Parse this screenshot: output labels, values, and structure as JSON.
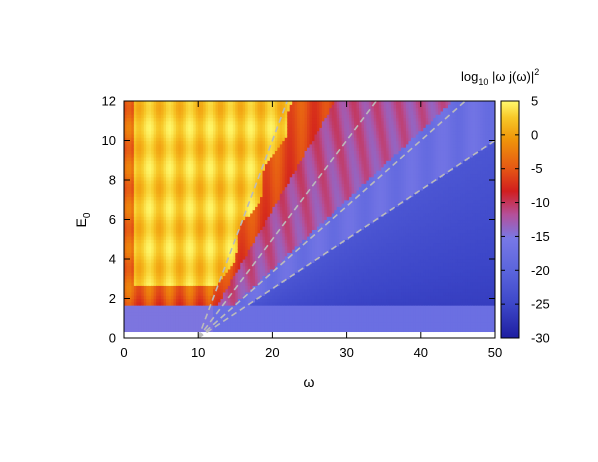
{
  "chart_data": {
    "type": "heatmap",
    "xlabel": "ω",
    "ylabel_main": "E",
    "ylabel_sub": "0",
    "xlim": [
      0,
      50
    ],
    "ylim": [
      0,
      12
    ],
    "x_ticks": [
      "0",
      "10",
      "20",
      "30",
      "40",
      "50"
    ],
    "y_ticks": [
      "0",
      "2",
      "4",
      "6",
      "8",
      "10",
      "12"
    ],
    "colorbar": {
      "label_prefix": "log",
      "label_base": "10",
      "label_body": " |ω j(ω)|",
      "label_exp": "2",
      "range": [
        -30,
        5
      ],
      "ticks": [
        "5",
        "0",
        "-5",
        "-10",
        "-15",
        "-20",
        "-25",
        "-30"
      ],
      "colors": [
        "#1e1ea0",
        "#3c46c8",
        "#5a64dc",
        "#7878e6",
        "#b4509a",
        "#d21e1e",
        "#e65a14",
        "#f0960a",
        "#f7c828",
        "#fffa6e"
      ]
    },
    "dashed_lines": [
      {
        "from": [
          10,
          0
        ],
        "to": [
          22,
          12
        ]
      },
      {
        "from": [
          10,
          0
        ],
        "to": [
          34,
          12
        ]
      },
      {
        "from": [
          10,
          0
        ],
        "to": [
          46,
          12
        ]
      },
      {
        "from": [
          10,
          0
        ],
        "to": [
          50,
          10
        ]
      }
    ],
    "dashed_line_color": "#bbbbbb",
    "data_extent": {
      "x": [
        0,
        50
      ],
      "y": [
        0.3,
        12
      ]
    }
  }
}
